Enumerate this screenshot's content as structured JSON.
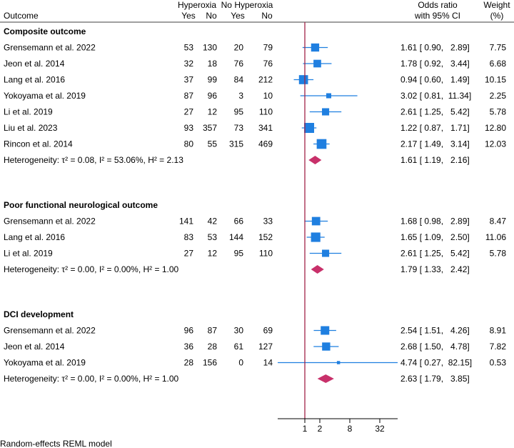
{
  "header": {
    "outcome": "Outcome",
    "group1": "Hyperoxia",
    "group2": "No Hyperoxia",
    "yes": "Yes",
    "no": "No",
    "or_line1": "Odds ratio",
    "or_line2": "with 95% CI",
    "weight_line1": "Weight",
    "weight_line2": "(%)"
  },
  "footer": "Random-effects REML model",
  "colors": {
    "marker": "#1f7fe0",
    "diamond": "#c8306a",
    "null_line": "#a02448"
  },
  "chart_data": {
    "type": "forest",
    "x_scale": "log2",
    "x_ticks": [
      1,
      2,
      8,
      32
    ],
    "x_tick_labels": [
      "1",
      "2",
      "8",
      "32"
    ],
    "null_value": 1,
    "groups": [
      {
        "title": "Composite outcome",
        "studies": [
          {
            "study": "Grensemann et al. 2022",
            "hyp_yes": "53",
            "hyp_no": "130",
            "nohyp_yes": "20",
            "nohyp_no": "79",
            "or": 1.61,
            "lo": 0.9,
            "hi": 2.89,
            "ci_text": "1.61 [ 0.90,   2.89]",
            "weight": "7.75"
          },
          {
            "study": "Jeon et al. 2014",
            "hyp_yes": "32",
            "hyp_no": "18",
            "nohyp_yes": "76",
            "nohyp_no": "76",
            "or": 1.78,
            "lo": 0.92,
            "hi": 3.44,
            "ci_text": "1.78 [ 0.92,   3.44]",
            "weight": "6.68"
          },
          {
            "study": "Lang et al. 2016",
            "hyp_yes": "37",
            "hyp_no": "99",
            "nohyp_yes": "84",
            "nohyp_no": "212",
            "or": 0.94,
            "lo": 0.6,
            "hi": 1.49,
            "ci_text": "0.94 [ 0.60,   1.49]",
            "weight": "10.15"
          },
          {
            "study": "Yokoyama et al. 2019",
            "hyp_yes": "87",
            "hyp_no": "96",
            "nohyp_yes": "3",
            "nohyp_no": "10",
            "or": 3.02,
            "lo": 0.81,
            "hi": 11.34,
            "ci_text": "3.02 [ 0.81,  11.34]",
            "weight": "2.25"
          },
          {
            "study": "Li et al. 2019",
            "hyp_yes": "27",
            "hyp_no": "12",
            "nohyp_yes": "95",
            "nohyp_no": "110",
            "or": 2.61,
            "lo": 1.25,
            "hi": 5.42,
            "ci_text": "2.61 [ 1.25,   5.42]",
            "weight": "5.78"
          },
          {
            "study": "Liu et al. 2023",
            "hyp_yes": "93",
            "hyp_no": "357",
            "nohyp_yes": "73",
            "nohyp_no": "341",
            "or": 1.22,
            "lo": 0.87,
            "hi": 1.71,
            "ci_text": "1.22 [ 0.87,   1.71]",
            "weight": "12.80"
          },
          {
            "study": "Rincon et al. 2014",
            "hyp_yes": "80",
            "hyp_no": "55",
            "nohyp_yes": "315",
            "nohyp_no": "469",
            "or": 2.17,
            "lo": 1.49,
            "hi": 3.14,
            "ci_text": "2.17 [ 1.49,   3.14]",
            "weight": "12.03"
          }
        ],
        "pooled": {
          "label": "Heterogeneity: τ² = 0.08, I² = 53.06%, H² = 2.13",
          "or": 1.61,
          "lo": 1.19,
          "hi": 2.16,
          "ci_text": "1.61 [ 1.19,   2.16]"
        }
      },
      {
        "title": "Poor functional neurological outcome",
        "studies": [
          {
            "study": "Grensemann et al. 2022",
            "hyp_yes": "141",
            "hyp_no": "42",
            "nohyp_yes": "66",
            "nohyp_no": "33",
            "or": 1.68,
            "lo": 0.98,
            "hi": 2.89,
            "ci_text": "1.68 [ 0.98,   2.89]",
            "weight": "8.47"
          },
          {
            "study": "Lang et al. 2016",
            "hyp_yes": "83",
            "hyp_no": "53",
            "nohyp_yes": "144",
            "nohyp_no": "152",
            "or": 1.65,
            "lo": 1.09,
            "hi": 2.5,
            "ci_text": "1.65 [ 1.09,   2.50]",
            "weight": "11.06"
          },
          {
            "study": "Li et al. 2019",
            "hyp_yes": "27",
            "hyp_no": "12",
            "nohyp_yes": "95",
            "nohyp_no": "110",
            "or": 2.61,
            "lo": 1.25,
            "hi": 5.42,
            "ci_text": "2.61 [ 1.25,   5.42]",
            "weight": "5.78"
          }
        ],
        "pooled": {
          "label": "Heterogeneity: τ² = 0.00, I² = 0.00%, H² = 1.00",
          "or": 1.79,
          "lo": 1.33,
          "hi": 2.42,
          "ci_text": "1.79 [ 1.33,   2.42]"
        }
      },
      {
        "title": "DCI development",
        "studies": [
          {
            "study": "Grensemann et al. 2022",
            "hyp_yes": "96",
            "hyp_no": "87",
            "nohyp_yes": "30",
            "nohyp_no": "69",
            "or": 2.54,
            "lo": 1.51,
            "hi": 4.26,
            "ci_text": "2.54 [ 1.51,   4.26]",
            "weight": "8.91"
          },
          {
            "study": "Jeon et al. 2014",
            "hyp_yes": "36",
            "hyp_no": "28",
            "nohyp_yes": "61",
            "nohyp_no": "127",
            "or": 2.68,
            "lo": 1.5,
            "hi": 4.78,
            "ci_text": "2.68 [ 1.50,   4.78]",
            "weight": "7.82"
          },
          {
            "study": "Yokoyama et al. 2019",
            "hyp_yes": "28",
            "hyp_no": "156",
            "nohyp_yes": "0",
            "nohyp_no": "14",
            "or": 4.74,
            "lo": 0.27,
            "hi": 82.15,
            "ci_text": "4.74 [ 0.27,  82.15]",
            "weight": "0.53"
          }
        ],
        "pooled": {
          "label": "Heterogeneity: τ² = 0.00, I² = 0.00%, H² = 1.00",
          "or": 2.63,
          "lo": 1.79,
          "hi": 3.85,
          "ci_text": "2.63 [ 1.79,   3.85]"
        }
      }
    ]
  }
}
